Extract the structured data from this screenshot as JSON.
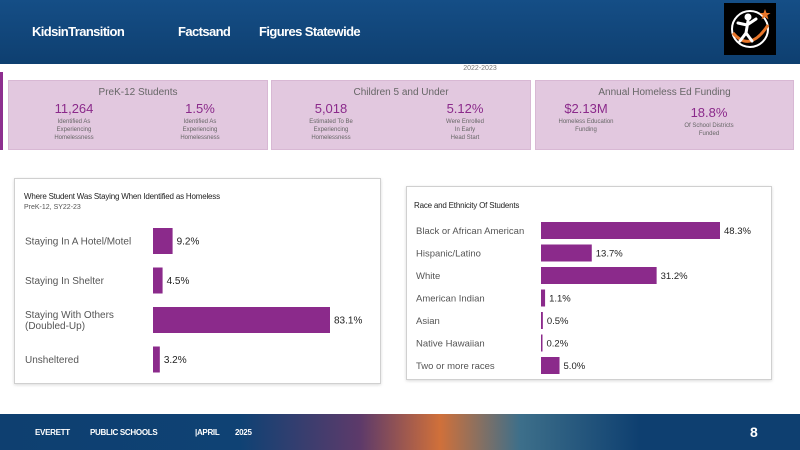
{
  "header": {
    "part1": "KidsinTransition",
    "part2": "Factsand",
    "part3": "Figures Statewide"
  },
  "year_label": "2022-2023",
  "cards": [
    {
      "title": "PreK-12 Students",
      "stats": [
        {
          "value": "11,264",
          "label": [
            "Identified As",
            "Experiencing",
            "Homelessness"
          ]
        },
        {
          "value": "1.5%",
          "label": [
            "Identified As",
            "Experiencing",
            "Homelessness"
          ]
        }
      ]
    },
    {
      "title": "Children 5 and Under",
      "stats": [
        {
          "value": "5,018",
          "label": [
            "Estimated To Be",
            "Experiencing",
            "Homelessness"
          ]
        },
        {
          "value": "5.12%",
          "label": [
            "Were Enrolled",
            "In Early",
            "Head Start"
          ]
        }
      ]
    },
    {
      "title": "Annual Homeless Ed Funding",
      "stats": [
        {
          "value": "$2.13M",
          "label": [
            "Homeless Education",
            "Funding"
          ]
        },
        {
          "value": "18.8%",
          "label": [
            "Of School Districts",
            "Funded"
          ]
        }
      ]
    }
  ],
  "chart_data": [
    {
      "type": "bar",
      "orientation": "horizontal",
      "title": "Where Student Was Staying When Identified as Homeless",
      "subtitle": "PreK-12, SY22-23",
      "categories": [
        "Staying In A Hotel/Motel",
        "Staying In Shelter",
        "Staying With Others (Doubled-Up)",
        "Unsheltered"
      ],
      "category_lines": [
        [
          "Staying In A Hotel/Motel"
        ],
        [
          "Staying In Shelter"
        ],
        [
          "Staying With Others",
          "(Doubled-Up)"
        ],
        [
          "Unsheltered"
        ]
      ],
      "values": [
        9.2,
        4.5,
        83.1,
        3.2
      ],
      "value_labels": [
        "9.2%",
        "4.5%",
        "83.1%",
        "3.2%"
      ],
      "xlim": [
        0,
        83.1
      ],
      "bar_color": "#8b2a8b"
    },
    {
      "type": "bar",
      "orientation": "horizontal",
      "title": "Race and Ethnicity Of Students",
      "categories": [
        "Black or African American",
        "Hispanic/Latino",
        "White",
        "American Indian",
        "Asian",
        "Native Hawaiian",
        "Two or more races"
      ],
      "values": [
        48.3,
        13.7,
        31.2,
        1.1,
        0.5,
        0.2,
        5.0
      ],
      "value_labels": [
        "48.3%",
        "13.7%",
        "31.2%",
        "1.1%",
        "0.5%",
        "0.2%",
        "5.0%"
      ],
      "xlim": [
        0,
        48.3
      ],
      "bar_color": "#8b2a8b"
    }
  ],
  "footer": {
    "org1": "EVERETT",
    "org2": "PUBLIC SCHOOLS",
    "month": "|APRIL",
    "year": "2025",
    "page": "8"
  }
}
